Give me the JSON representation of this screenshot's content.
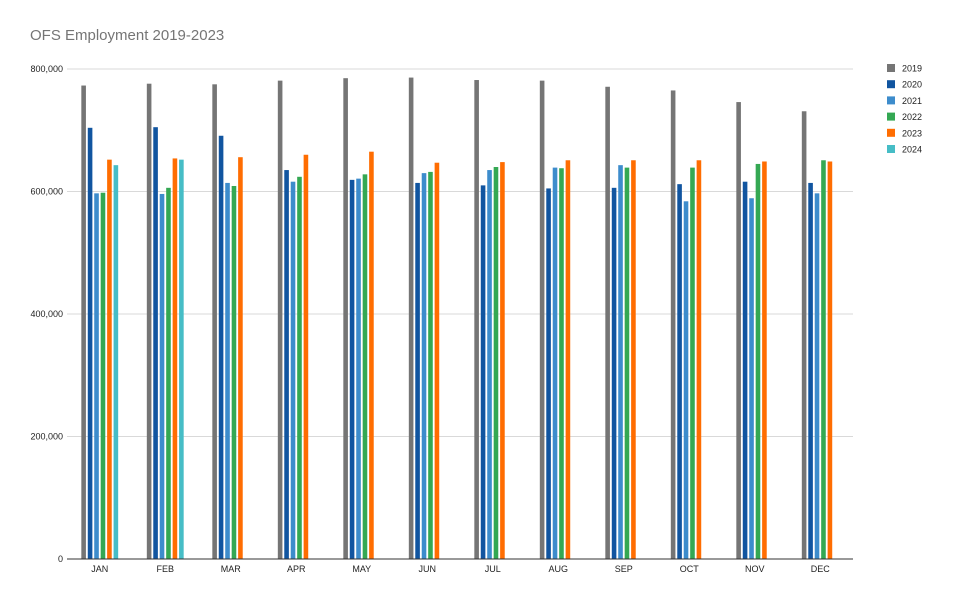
{
  "chart_data": {
    "type": "bar",
    "title": "OFS Employment 2019-2023",
    "xlabel": "",
    "ylabel": "",
    "ylim": [
      0,
      800000
    ],
    "yticks": [
      0,
      200000,
      400000,
      600000,
      800000
    ],
    "ytick_labels": [
      "0",
      "200,000",
      "400,000",
      "600,000",
      "800,000"
    ],
    "grid": true,
    "legend_position": "right",
    "categories": [
      "JAN",
      "FEB",
      "MAR",
      "APR",
      "MAY",
      "JUN",
      "JUL",
      "AUG",
      "SEP",
      "OCT",
      "NOV",
      "DEC"
    ],
    "series": [
      {
        "name": "2019",
        "color": "#757575",
        "values": [
          773000,
          776000,
          775000,
          781000,
          785000,
          786000,
          782000,
          781000,
          771000,
          765000,
          746000,
          731000
        ]
      },
      {
        "name": "2020",
        "color": "#1155a0",
        "values": [
          704000,
          705000,
          691000,
          635000,
          619000,
          614000,
          610000,
          605000,
          606000,
          612000,
          616000,
          614000
        ]
      },
      {
        "name": "2021",
        "color": "#3d8ccc",
        "values": [
          597000,
          596000,
          614000,
          616000,
          621000,
          630000,
          635000,
          639000,
          643000,
          584000,
          589000,
          597000
        ]
      },
      {
        "name": "2022",
        "color": "#34a853",
        "values": [
          598000,
          606000,
          609000,
          624000,
          628000,
          632000,
          640000,
          638000,
          639000,
          639000,
          645000,
          651000
        ]
      },
      {
        "name": "2023",
        "color": "#ff6d01",
        "values": [
          652000,
          654000,
          656000,
          660000,
          665000,
          647000,
          648000,
          651000,
          651000,
          651000,
          649000,
          649000
        ]
      },
      {
        "name": "2024",
        "color": "#46bdc6",
        "values": [
          643000,
          652000,
          null,
          null,
          null,
          null,
          null,
          null,
          null,
          null,
          null,
          null
        ]
      }
    ]
  }
}
